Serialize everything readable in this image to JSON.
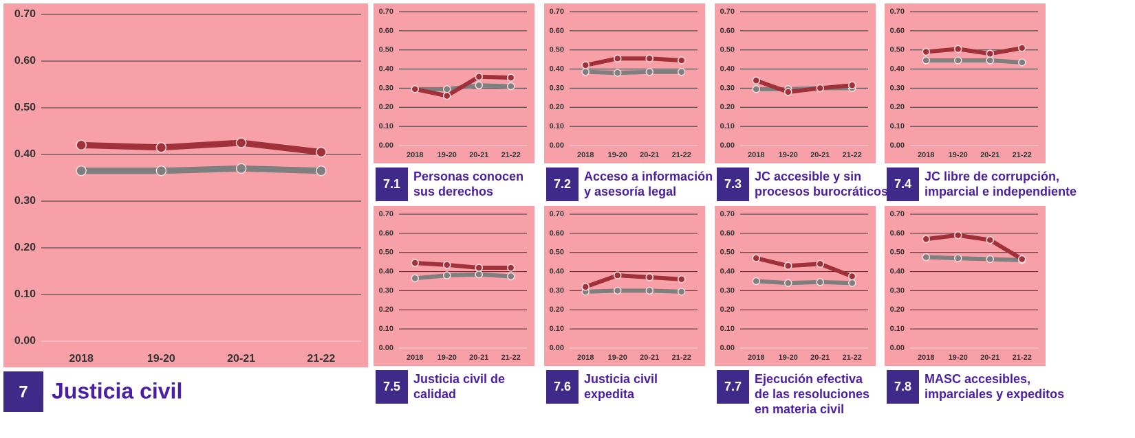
{
  "chart_data": [
    {
      "type": "line",
      "label": "7",
      "title": [
        "Justicia civil"
      ],
      "categories": [
        "2018",
        "19-20",
        "20-21",
        "21-22"
      ],
      "series": [
        {
          "color": "#a0303a",
          "values": [
            0.42,
            0.415,
            0.425,
            0.405
          ]
        },
        {
          "color": "#7f7f7f",
          "values": [
            0.365,
            0.365,
            0.37,
            0.365
          ]
        }
      ],
      "ylim": [
        0,
        0.7
      ],
      "yticks": [
        {
          "value": 0,
          "label": "0.00"
        },
        {
          "value": 0.1,
          "label": "0.10"
        },
        {
          "value": 0.2,
          "label": "0.20"
        },
        {
          "value": 0.3,
          "label": "0.30"
        },
        {
          "value": 0.4,
          "label": "0.40"
        },
        {
          "value": 0.5,
          "label": "0.50"
        },
        {
          "value": 0.6,
          "label": "0.60"
        },
        {
          "value": 0.7,
          "label": "0.70"
        }
      ],
      "grid": true
    },
    {
      "type": "line",
      "label": "7.1",
      "title": [
        "Personas conocen",
        "sus derechos"
      ],
      "categories": [
        "2018",
        "19-20",
        "20-21",
        "21-22"
      ],
      "series": [
        {
          "color": "#a0303a",
          "values": [
            0.295,
            0.26,
            0.36,
            0.355
          ]
        },
        {
          "color": "#7f7f7f",
          "values": [
            0.295,
            0.295,
            0.315,
            0.31
          ]
        }
      ],
      "ylim": [
        0,
        0.7
      ],
      "yticks": [
        {
          "value": 0,
          "label": "0.00"
        },
        {
          "value": 0.1,
          "label": "0.10"
        },
        {
          "value": 0.2,
          "label": "0.20"
        },
        {
          "value": 0.3,
          "label": "0.30"
        },
        {
          "value": 0.4,
          "label": "0.40"
        },
        {
          "value": 0.5,
          "label": "0.50"
        },
        {
          "value": 0.6,
          "label": "0.60"
        },
        {
          "value": 0.7,
          "label": "0.70"
        }
      ],
      "grid": true
    },
    {
      "type": "line",
      "label": "7.2",
      "title": [
        "Acceso a información",
        "y asesoría legal"
      ],
      "categories": [
        "2018",
        "19-20",
        "20-21",
        "21-22"
      ],
      "series": [
        {
          "color": "#a0303a",
          "values": [
            0.42,
            0.455,
            0.455,
            0.445
          ]
        },
        {
          "color": "#7f7f7f",
          "values": [
            0.385,
            0.38,
            0.385,
            0.385
          ]
        }
      ],
      "ylim": [
        0,
        0.7
      ],
      "yticks": [
        {
          "value": 0,
          "label": "0.00"
        },
        {
          "value": 0.1,
          "label": "0.10"
        },
        {
          "value": 0.2,
          "label": "0.20"
        },
        {
          "value": 0.3,
          "label": "0.30"
        },
        {
          "value": 0.4,
          "label": "0.40"
        },
        {
          "value": 0.5,
          "label": "0.50"
        },
        {
          "value": 0.6,
          "label": "0.60"
        },
        {
          "value": 0.7,
          "label": "0.70"
        }
      ],
      "grid": true
    },
    {
      "type": "line",
      "label": "7.3",
      "title": [
        "JC accesible y sin",
        "procesos burocráticos"
      ],
      "categories": [
        "2018",
        "19-20",
        "20-21",
        "21-22"
      ],
      "series": [
        {
          "color": "#a0303a",
          "values": [
            0.34,
            0.28,
            0.3,
            0.315
          ]
        },
        {
          "color": "#7f7f7f",
          "values": [
            0.295,
            0.295,
            0.3,
            0.3
          ]
        }
      ],
      "ylim": [
        0,
        0.7
      ],
      "yticks": [
        {
          "value": 0,
          "label": "0.00"
        },
        {
          "value": 0.1,
          "label": "0.10"
        },
        {
          "value": 0.2,
          "label": "0.20"
        },
        {
          "value": 0.3,
          "label": "0.30"
        },
        {
          "value": 0.4,
          "label": "0.40"
        },
        {
          "value": 0.5,
          "label": "0.50"
        },
        {
          "value": 0.6,
          "label": "0.60"
        },
        {
          "value": 0.7,
          "label": "0.70"
        }
      ],
      "grid": true
    },
    {
      "type": "line",
      "label": "7.4",
      "title": [
        "JC libre de corrupción,",
        "imparcial e independiente"
      ],
      "categories": [
        "2018",
        "19-20",
        "20-21",
        "21-22"
      ],
      "series": [
        {
          "color": "#a0303a",
          "values": [
            0.49,
            0.505,
            0.48,
            0.51
          ]
        },
        {
          "color": "#7f7f7f",
          "values": [
            0.445,
            0.445,
            0.445,
            0.435
          ]
        }
      ],
      "ylim": [
        0,
        0.7
      ],
      "yticks": [
        {
          "value": 0,
          "label": "0.00"
        },
        {
          "value": 0.1,
          "label": "0.10"
        },
        {
          "value": 0.2,
          "label": "0.20"
        },
        {
          "value": 0.3,
          "label": "0.30"
        },
        {
          "value": 0.4,
          "label": "0.40"
        },
        {
          "value": 0.5,
          "label": "0.50"
        },
        {
          "value": 0.6,
          "label": "0.60"
        },
        {
          "value": 0.7,
          "label": "0.70"
        }
      ],
      "grid": true
    },
    {
      "type": "line",
      "label": "7.5",
      "title": [
        "Justicia civil de",
        "calidad"
      ],
      "categories": [
        "2018",
        "19-20",
        "20-21",
        "21-22"
      ],
      "series": [
        {
          "color": "#a0303a",
          "values": [
            0.445,
            0.435,
            0.42,
            0.42
          ]
        },
        {
          "color": "#7f7f7f",
          "values": [
            0.365,
            0.38,
            0.385,
            0.375
          ]
        }
      ],
      "ylim": [
        0,
        0.7
      ],
      "yticks": [
        {
          "value": 0,
          "label": "0.00"
        },
        {
          "value": 0.1,
          "label": "0.10"
        },
        {
          "value": 0.2,
          "label": "0.20"
        },
        {
          "value": 0.3,
          "label": "0.30"
        },
        {
          "value": 0.4,
          "label": "0.40"
        },
        {
          "value": 0.5,
          "label": "0.50"
        },
        {
          "value": 0.6,
          "label": "0.60"
        },
        {
          "value": 0.7,
          "label": "0.70"
        }
      ],
      "grid": true
    },
    {
      "type": "line",
      "label": "7.6",
      "title": [
        "Justicia civil",
        "expedita"
      ],
      "categories": [
        "2018",
        "19-20",
        "20-21",
        "21-22"
      ],
      "series": [
        {
          "color": "#a0303a",
          "values": [
            0.32,
            0.38,
            0.37,
            0.36
          ]
        },
        {
          "color": "#7f7f7f",
          "values": [
            0.295,
            0.3,
            0.3,
            0.295
          ]
        }
      ],
      "ylim": [
        0,
        0.7
      ],
      "yticks": [
        {
          "value": 0,
          "label": "0.00"
        },
        {
          "value": 0.1,
          "label": "0.10"
        },
        {
          "value": 0.2,
          "label": "0.20"
        },
        {
          "value": 0.3,
          "label": "0.30"
        },
        {
          "value": 0.4,
          "label": "0.40"
        },
        {
          "value": 0.5,
          "label": "0.50"
        },
        {
          "value": 0.6,
          "label": "0.60"
        },
        {
          "value": 0.7,
          "label": "0.70"
        }
      ],
      "grid": true
    },
    {
      "type": "line",
      "label": "7.7",
      "title": [
        "Ejecución efectiva",
        "de las resoluciones",
        "en materia civil"
      ],
      "categories": [
        "2018",
        "19-20",
        "20-21",
        "21-22"
      ],
      "series": [
        {
          "color": "#a0303a",
          "values": [
            0.47,
            0.43,
            0.44,
            0.375
          ]
        },
        {
          "color": "#7f7f7f",
          "values": [
            0.35,
            0.34,
            0.345,
            0.34
          ]
        }
      ],
      "ylim": [
        0,
        0.7
      ],
      "yticks": [
        {
          "value": 0,
          "label": "0.00"
        },
        {
          "value": 0.1,
          "label": "0.10"
        },
        {
          "value": 0.2,
          "label": "0.20"
        },
        {
          "value": 0.3,
          "label": "0.30"
        },
        {
          "value": 0.4,
          "label": "0.40"
        },
        {
          "value": 0.5,
          "label": "0.50"
        },
        {
          "value": 0.6,
          "label": "0.60"
        },
        {
          "value": 0.7,
          "label": "0.70"
        }
      ],
      "grid": true
    },
    {
      "type": "line",
      "label": "7.8",
      "title": [
        "MASC accesibles,",
        "imparciales y expeditos"
      ],
      "categories": [
        "2018",
        "19-20",
        "20-21",
        "21-22"
      ],
      "series": [
        {
          "color": "#a0303a",
          "values": [
            0.57,
            0.59,
            0.565,
            0.465
          ]
        },
        {
          "color": "#7f7f7f",
          "values": [
            0.475,
            0.47,
            0.465,
            0.46
          ]
        }
      ],
      "ylim": [
        0,
        0.7
      ],
      "yticks": [
        {
          "value": 0,
          "label": "0.00"
        },
        {
          "value": 0.1,
          "label": "0.10"
        },
        {
          "value": 0.2,
          "label": "0.20"
        },
        {
          "value": 0.3,
          "label": "0.30"
        },
        {
          "value": 0.4,
          "label": "0.40"
        },
        {
          "value": 0.5,
          "label": "0.50"
        },
        {
          "value": 0.6,
          "label": "0.60"
        },
        {
          "value": 0.7,
          "label": "0.70"
        }
      ],
      "grid": true
    }
  ]
}
